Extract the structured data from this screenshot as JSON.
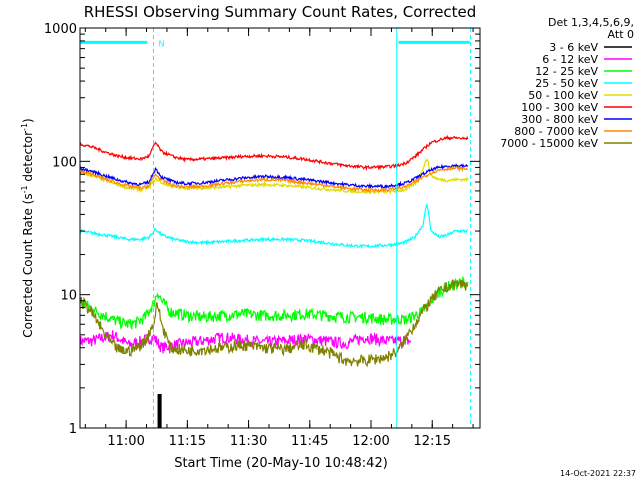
{
  "chart_data": {
    "type": "line",
    "title": "RHESSI Observing Summary Count Rates, Corrected",
    "xlabel": "Start Time (20-May-10 10:48:42)",
    "ylabel_main": "Corrected Count Rate (s",
    "ylabel_sup1": "-1",
    "ylabel_mid": " detector",
    "ylabel_sup2": "-1",
    "ylabel_end": ")",
    "yscale": "log",
    "xlim_minutes": [
      0,
      98
    ],
    "ylim": [
      1,
      1000
    ],
    "x_ticks": [
      {
        "minute": 11.3,
        "label": "11:00"
      },
      {
        "minute": 26.3,
        "label": "11:15"
      },
      {
        "minute": 41.3,
        "label": "11:30"
      },
      {
        "minute": 56.3,
        "label": "11:45"
      },
      {
        "minute": 71.3,
        "label": "12:00"
      },
      {
        "minute": 86.3,
        "label": "12:15"
      }
    ],
    "y_ticks": [
      {
        "value": 1,
        "label": "1"
      },
      {
        "value": 10,
        "label": "10"
      },
      {
        "value": 100,
        "label": "100"
      },
      {
        "value": 1000,
        "label": "1000"
      }
    ],
    "legend_header": [
      "Det 1,3,4,5,6,9,",
      "Att 0"
    ],
    "legend_position": "right",
    "night_marker_label": "N",
    "timestamp": "14-Oct-2021 22:37",
    "markers": {
      "vertical_lines_minutes": [
        18.0,
        77.6,
        95.7
      ],
      "top_bars": [
        [
          0,
          16.5
        ],
        [
          78.0,
          95.5
        ]
      ],
      "top_bar_value": 780
    },
    "series": [
      {
        "name": "3 - 6 keV",
        "color": "#000000",
        "x": [
          19.0,
          19.3,
          19.6,
          20.0
        ],
        "y": [
          1.5,
          1.8,
          1.6,
          1.2
        ]
      },
      {
        "name": "6 - 12 keV",
        "color": "#ff00ff",
        "x": [
          0,
          3,
          5,
          8,
          10,
          12,
          15,
          18,
          20,
          25,
          30,
          35,
          40,
          45,
          50,
          55,
          60,
          65,
          70,
          75,
          80,
          81
        ],
        "y": [
          4.5,
          4.5,
          4.7,
          5.0,
          4.6,
          4.2,
          4.5,
          4.8,
          4.0,
          4.3,
          4.5,
          4.8,
          4.6,
          4.4,
          4.5,
          4.7,
          4.5,
          4.3,
          4.8,
          4.5,
          4.5,
          4.5
        ]
      },
      {
        "name": "12 - 25 keV",
        "color": "#00ff00",
        "x": [
          0,
          2,
          4,
          6,
          8,
          10,
          12,
          14,
          16,
          18,
          19,
          20,
          22,
          26,
          30,
          35,
          40,
          45,
          50,
          55,
          60,
          65,
          70,
          75,
          78,
          80,
          82,
          84,
          86,
          88,
          90,
          92,
          94,
          95
        ],
        "y": [
          9.0,
          8.2,
          7.5,
          7.0,
          6.5,
          6.2,
          6.0,
          6.2,
          6.8,
          8.5,
          10.5,
          9.0,
          7.5,
          7.0,
          6.8,
          7.0,
          7.2,
          7.0,
          7.0,
          7.2,
          7.0,
          6.8,
          6.8,
          6.5,
          6.6,
          6.5,
          7.0,
          7.5,
          9.0,
          10.5,
          11.5,
          12.0,
          12.5,
          12.0
        ]
      },
      {
        "name": "25 - 50 keV",
        "color": "#00ffff",
        "x": [
          0,
          3,
          6,
          9,
          12,
          15,
          17,
          18.5,
          20,
          23,
          26,
          30,
          35,
          40,
          45,
          50,
          55,
          60,
          65,
          70,
          75,
          78,
          80,
          82,
          84,
          85,
          86,
          88,
          90,
          92,
          95
        ],
        "y": [
          30,
          29,
          28,
          27,
          26,
          26,
          27,
          31,
          28,
          26,
          25,
          24.5,
          25,
          25.5,
          26,
          26,
          25.5,
          24.5,
          23.5,
          23,
          23.5,
          24,
          25,
          27,
          33,
          48,
          30,
          27,
          28,
          30,
          30
        ]
      },
      {
        "name": "50 - 100 keV",
        "color": "#dddd00",
        "x": [
          0,
          3,
          6,
          9,
          12,
          15,
          17,
          18.5,
          20,
          23,
          26,
          30,
          35,
          40,
          45,
          50,
          55,
          60,
          65,
          70,
          75,
          78,
          80,
          81.5,
          83,
          85,
          86,
          88,
          90,
          92,
          95
        ],
        "y": [
          82,
          78,
          72,
          67,
          63,
          61,
          64,
          74,
          69,
          64,
          63,
          63,
          64,
          66,
          67,
          66,
          64,
          62,
          60,
          59,
          59,
          60,
          62,
          66,
          72,
          105,
          78,
          73,
          72,
          73,
          73
        ]
      },
      {
        "name": "100 - 300 keV",
        "color": "#ff0000",
        "x": [
          0,
          3,
          6,
          9,
          12,
          15,
          17,
          18.5,
          20,
          23,
          26,
          30,
          35,
          40,
          45,
          50,
          55,
          60,
          65,
          70,
          75,
          78,
          80,
          82,
          84,
          86,
          88,
          90,
          92,
          94,
          95
        ],
        "y": [
          135,
          128,
          118,
          110,
          106,
          104,
          110,
          138,
          118,
          108,
          103,
          104,
          106,
          109,
          110,
          108,
          104,
          98,
          93,
          90,
          91,
          93,
          98,
          108,
          122,
          138,
          145,
          150,
          150,
          148,
          148
        ]
      },
      {
        "name": "300 - 800 keV",
        "color": "#0000ff",
        "x": [
          0,
          3,
          6,
          9,
          12,
          15,
          17,
          18.5,
          20,
          23,
          26,
          30,
          35,
          40,
          45,
          50,
          55,
          60,
          65,
          70,
          75,
          78,
          80,
          82,
          84,
          86,
          88,
          90,
          92,
          94,
          95
        ],
        "y": [
          88,
          84,
          78,
          73,
          69,
          67,
          70,
          88,
          76,
          70,
          68,
          69,
          72,
          75,
          77,
          76,
          73,
          70,
          67,
          65,
          65,
          67,
          69,
          74,
          80,
          86,
          90,
          92,
          93,
          92,
          92
        ]
      },
      {
        "name": "800 - 7000 keV",
        "color": "#ff8800",
        "x": [
          0,
          3,
          6,
          9,
          12,
          15,
          17,
          18.5,
          20,
          23,
          26,
          30,
          35,
          40,
          45,
          50,
          55,
          60,
          65,
          70,
          75,
          78,
          80,
          82,
          84,
          86,
          88,
          90,
          92,
          94,
          95
        ],
        "y": [
          84,
          80,
          74,
          69,
          65,
          63,
          66,
          80,
          72,
          66,
          64,
          65,
          68,
          71,
          73,
          72,
          69,
          66,
          63,
          61,
          61,
          63,
          65,
          70,
          76,
          82,
          86,
          88,
          89,
          88,
          88
        ]
      },
      {
        "name": "7000 - 15000 keV",
        "color": "#808000",
        "x": [
          0,
          2,
          4,
          6,
          8,
          10,
          12,
          14,
          16,
          18,
          19,
          20,
          22,
          26,
          30,
          35,
          40,
          45,
          50,
          55,
          60,
          65,
          70,
          75,
          78,
          80,
          82,
          84,
          86,
          88,
          90,
          92,
          94,
          95
        ],
        "y": [
          9.0,
          8.0,
          6.5,
          5.0,
          4.2,
          3.8,
          3.8,
          4.0,
          4.5,
          6.0,
          8.5,
          6.0,
          4.0,
          3.8,
          3.9,
          4.0,
          4.2,
          4.0,
          3.9,
          4.2,
          3.8,
          3.2,
          3.2,
          3.4,
          3.8,
          4.8,
          6.0,
          7.5,
          9.0,
          10.5,
          11.5,
          12.0,
          12.0,
          11.5
        ]
      }
    ]
  }
}
